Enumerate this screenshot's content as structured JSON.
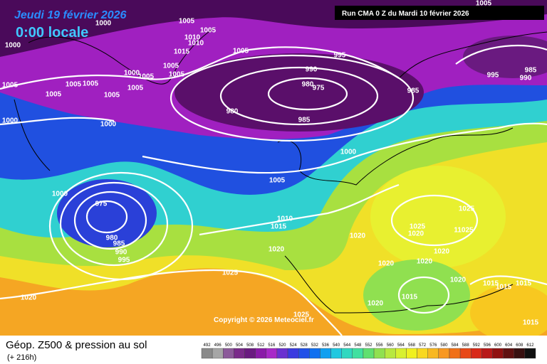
{
  "header": {
    "date": "Jeudi 19 février 2026",
    "time": "0:00 locale",
    "run": "Run CMA 0 Z du Mardi 10 février 2026"
  },
  "copyright": "Copyright © 2026 Meteociel.fr",
  "footer": {
    "title": "Géop. Z500 & pression au sol",
    "lead": "(+ 216h)"
  },
  "legend": {
    "values": [
      492,
      496,
      500,
      504,
      508,
      512,
      516,
      520,
      524,
      528,
      532,
      536,
      540,
      544,
      548,
      552,
      556,
      560,
      564,
      568,
      572,
      576,
      580,
      584,
      588,
      592,
      596,
      600,
      604,
      608,
      612
    ],
    "colors": [
      "#8a8a8a",
      "#a6a6a6",
      "#8c5a9a",
      "#7a2a8a",
      "#6a1a80",
      "#8a1aa8",
      "#a828c8",
      "#6a30d0",
      "#3a3ae0",
      "#2050e8",
      "#1070f0",
      "#10a0f0",
      "#20c8e0",
      "#30d8c0",
      "#40e0a0",
      "#60e070",
      "#90e050",
      "#b8e840",
      "#d8f030",
      "#f0f020",
      "#f8d820",
      "#f8b820",
      "#f89820",
      "#f07018",
      "#e84818",
      "#d82818",
      "#b81818",
      "#901010",
      "#601010",
      "#381010",
      "#101010"
    ]
  },
  "isobar_labels": [
    "1000",
    "1000",
    "1005",
    "1005",
    "1010",
    "1010",
    "1015",
    "1005",
    "995",
    "990",
    "980",
    "975",
    "985",
    "980",
    "985",
    "1005",
    "995",
    "990",
    "985",
    "1005",
    "1005",
    "1005",
    "1005",
    "1005",
    "1000",
    "1005",
    "1005",
    "1005",
    "1005",
    "1000",
    "1000",
    "1000",
    "1005",
    "1000",
    "975",
    "980",
    "985",
    "990",
    "995",
    "1010",
    "1015",
    "1020",
    "1020",
    "1025",
    "1025",
    "1020",
    "11025",
    "1020",
    "1020",
    "1020",
    "1025",
    "1020",
    "1015",
    "1020",
    "1020",
    "1015",
    "1015",
    "1015",
    "1015",
    "1025"
  ]
}
